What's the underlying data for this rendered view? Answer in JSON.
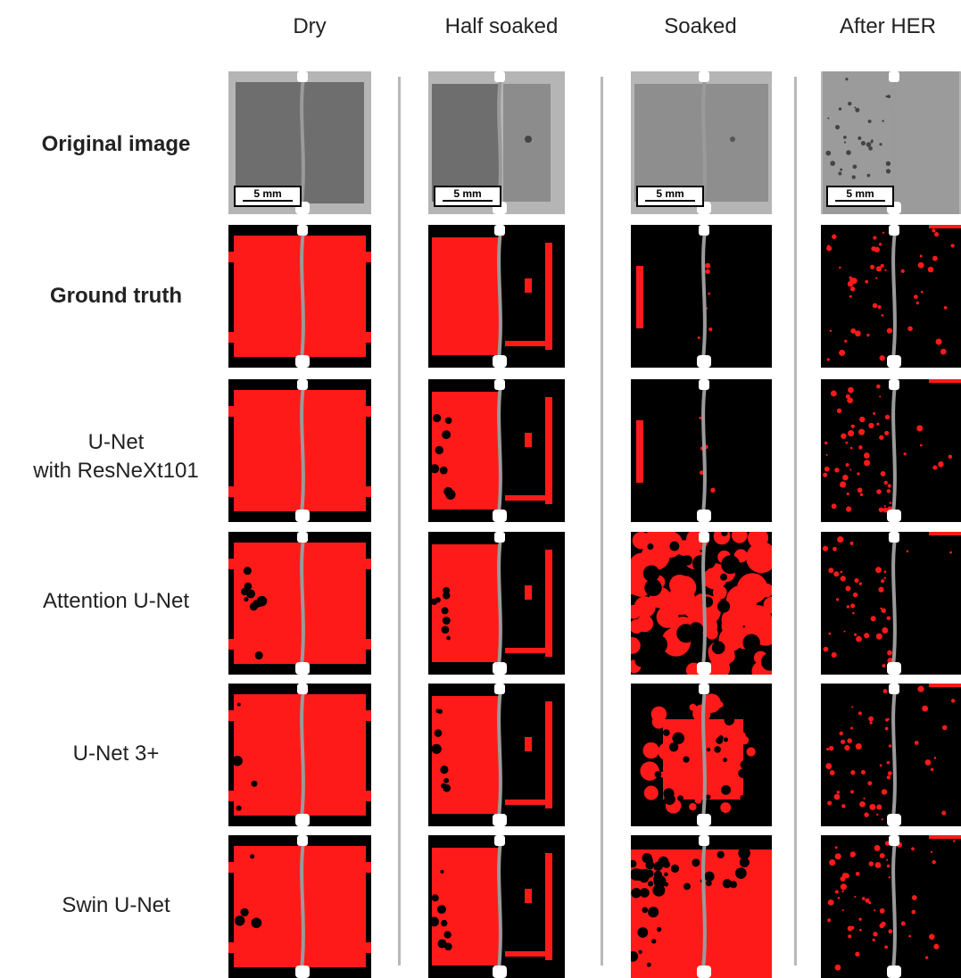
{
  "columns": [
    "Dry",
    "Half soaked",
    "Soaked",
    "After HER"
  ],
  "rows": [
    {
      "label_lines": [
        "Original image"
      ],
      "bold": true,
      "kind": "original"
    },
    {
      "label_lines": [
        "Ground truth"
      ],
      "bold": true,
      "kind": "mask"
    },
    {
      "label_lines": [
        "U-Net",
        "with ResNeXt101"
      ],
      "bold": false,
      "kind": "mask"
    },
    {
      "label_lines": [
        "Attention U-Net"
      ],
      "bold": false,
      "kind": "mask"
    },
    {
      "label_lines": [
        "U-Net 3+"
      ],
      "bold": false,
      "kind": "mask"
    },
    {
      "label_lines": [
        "Swin U-Net"
      ],
      "bold": false,
      "kind": "mask"
    }
  ],
  "scale_bar": "5 mm",
  "colors": {
    "water": "#ff1a1a",
    "background": "#000000",
    "fiber": "#9a9a9a",
    "original_gray": "#6e6e6e",
    "divider": "#b8b8b8"
  }
}
